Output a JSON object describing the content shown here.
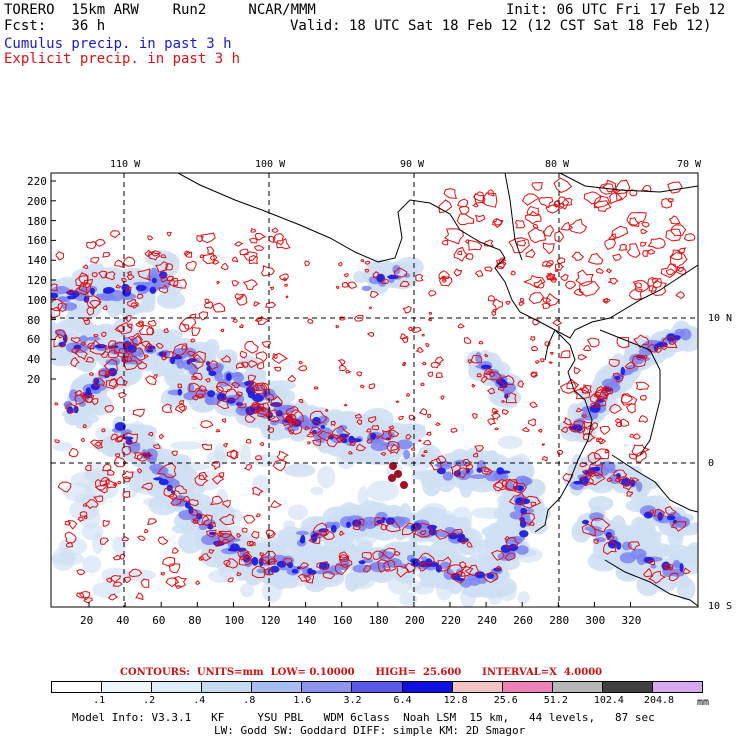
{
  "header": {
    "title": "TORERO  15km ARW    Run2     NCAR/MMM",
    "init": "Init: 06 UTC Fri 17 Feb 12",
    "fcst": "Fcst:   36 h",
    "valid": "Valid: 18 UTC Sat 18 Feb 12 (12 CST Sat 18 Feb 12)",
    "cumulus": "Cumulus precip. in past 3 h",
    "explicit": "Explicit precip. in past 3 h"
  },
  "map": {
    "lon_labels": [
      "110 W",
      "100 W",
      "90 W",
      "80 W",
      "70 W"
    ],
    "lat_labels": [
      "10 N",
      "0",
      "10 S"
    ],
    "y_ticks": [
      "220",
      "200",
      "180",
      "160",
      "140",
      "120",
      "100",
      "80",
      "60",
      "40",
      "20"
    ],
    "x_ticks": [
      "20",
      "40",
      "60",
      "80",
      "100",
      "120",
      "140",
      "160",
      "180",
      "200",
      "220",
      "240",
      "260",
      "280",
      "300",
      "320"
    ],
    "colors": {
      "frame": "#000000",
      "coast": "#000000",
      "cumulus_light": "#cfe0f4",
      "cumulus_mid": "#7d84f0",
      "cumulus_dark": "#1d1de0",
      "explicit": "#e01010"
    }
  },
  "legend": {
    "contours": "CONTOURS:  UNITS=mm  LOW= 0.10000      HIGH=  25.600      INTERVAL=X  4.0000",
    "bins": [
      ".1",
      ".2",
      ".4",
      ".8",
      "1.6",
      "3.2",
      "6.4",
      "12.8",
      "25.6",
      "51.2",
      "102.4",
      "204.8"
    ],
    "unit": "mm",
    "colors": [
      "#ffffff",
      "#eef6fb",
      "#dceefa",
      "#c3dcf0",
      "#a8bdf4",
      "#8c94f0",
      "#5a5ae8",
      "#1010e0",
      "#f4c4c4",
      "#f080b8",
      "#b8b8b8",
      "#404040",
      "#d8a8f0"
    ]
  },
  "footer": {
    "line1": "Model Info: V3.3.1   KF     YSU PBL   WDM 6class  Noah LSM  15 km,   44 levels,   87 sec",
    "line2": "LW: Godd SW: Goddard DIFF: simple KM: 2D Smagor"
  }
}
